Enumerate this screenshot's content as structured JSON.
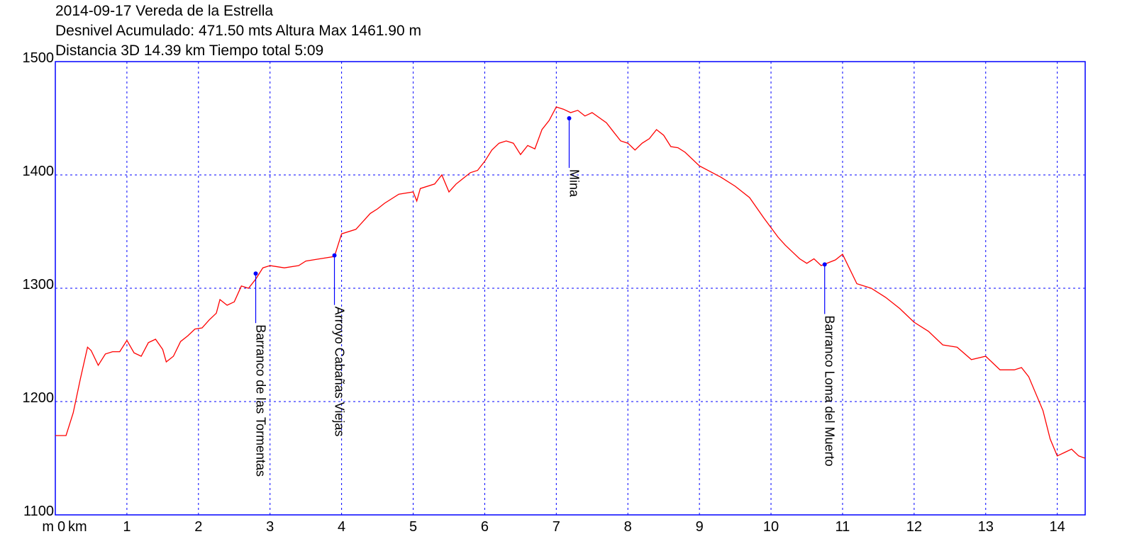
{
  "header": {
    "line1": "2014-09-17 Vereda de la Estrella",
    "line2": "Desnivel Acumulado: 471.50 mts  Altura Max 1461.90 m",
    "line3": "Distancia 3D 14.39 km  Tiempo total 5:09"
  },
  "chart_data": {
    "type": "line",
    "title": "2014-09-17 Vereda de la Estrella",
    "xlabel": "km",
    "ylabel": "m",
    "x_unit_label": "km",
    "y_unit_label": "m",
    "xlim": [
      0,
      14.39
    ],
    "ylim": [
      1100,
      1500
    ],
    "x_ticks": [
      0,
      1,
      2,
      3,
      4,
      5,
      6,
      7,
      8,
      9,
      10,
      11,
      12,
      13,
      14
    ],
    "y_ticks": [
      1100,
      1200,
      1300,
      1400,
      1500
    ],
    "grid": true,
    "colors": {
      "line": "#ff0000",
      "grid": "#0000ff",
      "frame": "#0000ff",
      "waypoint": "#0000ff"
    },
    "series": [
      {
        "x": [
          0,
          0.15,
          0.25,
          0.35,
          0.45,
          0.5,
          0.6,
          0.7,
          0.8,
          0.9,
          1.0,
          1.1,
          1.2,
          1.3,
          1.4,
          1.5,
          1.55,
          1.65,
          1.75,
          1.85,
          1.95,
          2.05,
          2.15,
          2.25,
          2.3,
          2.4,
          2.5,
          2.6,
          2.7,
          2.8,
          2.9,
          3.0,
          3.2,
          3.4,
          3.5,
          3.7,
          3.9,
          4.0,
          4.2,
          4.4,
          4.5,
          4.6,
          4.8,
          5.0,
          5.05,
          5.1,
          5.3,
          5.4,
          5.5,
          5.6,
          5.8,
          5.9,
          6.0,
          6.1,
          6.2,
          6.3,
          6.4,
          6.5,
          6.6,
          6.7,
          6.8,
          6.9,
          7.0,
          7.1,
          7.2,
          7.3,
          7.4,
          7.5,
          7.7,
          7.8,
          7.9,
          8.0,
          8.1,
          8.2,
          8.3,
          8.4,
          8.5,
          8.6,
          8.7,
          8.8,
          9.0,
          9.3,
          9.5,
          9.7,
          9.9,
          10.1,
          10.2,
          10.3,
          10.4,
          10.5,
          10.6,
          10.7,
          10.9,
          11.0,
          11.2,
          11.4,
          11.6,
          11.8,
          12.0,
          12.2,
          12.4,
          12.6,
          12.8,
          13.0,
          13.2,
          13.4,
          13.5,
          13.6,
          13.8,
          13.9,
          14.0,
          14.1,
          14.2,
          14.3,
          14.39
        ],
        "y": [
          1170,
          1170,
          1190,
          1220,
          1248,
          1245,
          1232,
          1242,
          1244,
          1244,
          1254,
          1243,
          1240,
          1252,
          1255,
          1246,
          1235,
          1240,
          1253,
          1258,
          1264,
          1265,
          1272,
          1278,
          1290,
          1285,
          1288,
          1302,
          1300,
          1308,
          1318,
          1320,
          1318,
          1320,
          1324,
          1326,
          1328,
          1348,
          1352,
          1366,
          1370,
          1375,
          1383,
          1385,
          1377,
          1388,
          1392,
          1400,
          1385,
          1392,
          1402,
          1404,
          1412,
          1422,
          1428,
          1430,
          1428,
          1418,
          1426,
          1423,
          1440,
          1448,
          1460,
          1458,
          1455,
          1457,
          1452,
          1455,
          1446,
          1438,
          1430,
          1428,
          1422,
          1428,
          1432,
          1440,
          1435,
          1425,
          1424,
          1420,
          1408,
          1398,
          1390,
          1380,
          1362,
          1345,
          1338,
          1332,
          1326,
          1322,
          1326,
          1320,
          1325,
          1330,
          1304,
          1300,
          1292,
          1282,
          1270,
          1262,
          1250,
          1248,
          1237,
          1240,
          1228,
          1228,
          1230,
          1222,
          1192,
          1167,
          1152,
          1155,
          1158,
          1152,
          1150
        ]
      }
    ],
    "waypoints": [
      {
        "name": "Barranco de las Tormentas",
        "x": 2.8,
        "y": 1313
      },
      {
        "name": "Arroyo Cabañas Viejas",
        "x": 3.9,
        "y": 1329
      },
      {
        "name": "Mina",
        "x": 7.18,
        "y": 1450
      },
      {
        "name": "Barranco Loma del Muerto",
        "x": 10.75,
        "y": 1321
      }
    ]
  }
}
